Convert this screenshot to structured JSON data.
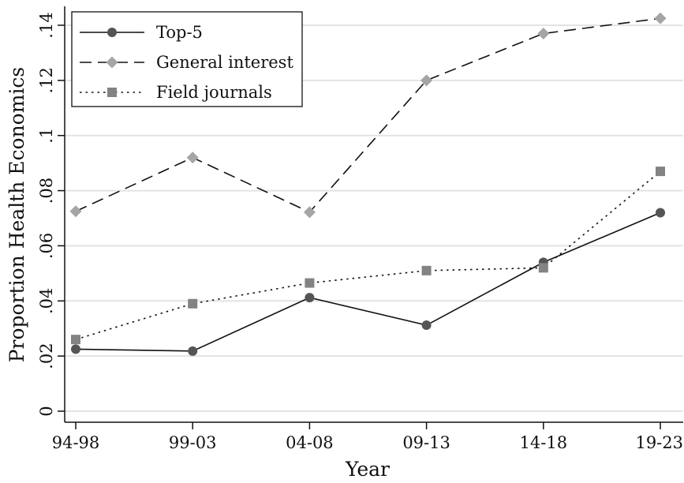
{
  "chart_data": {
    "type": "line",
    "title": "",
    "xlabel": "Year",
    "ylabel": "Proportion Health Economics",
    "categories": [
      "94-98",
      "99-03",
      "04-08",
      "09-13",
      "14-18",
      "19-23"
    ],
    "ylim": [
      0,
      0.145
    ],
    "yticks": [
      0,
      0.02,
      0.04,
      0.06,
      0.08,
      0.1,
      0.12,
      0.14
    ],
    "ytick_labels": [
      "0",
      ".02",
      ".04",
      ".06",
      ".08",
      ".1",
      ".12",
      ".14"
    ],
    "grid": true,
    "legend_position": "top-left",
    "series": [
      {
        "name": "Top-5",
        "values": [
          0.0225,
          0.0218,
          0.0412,
          0.0312,
          0.054,
          0.072
        ],
        "color": "#111111",
        "marker": "circle",
        "marker_color": "#555555",
        "dash": "solid"
      },
      {
        "name": "General interest",
        "values": [
          0.0725,
          0.092,
          0.0722,
          0.12,
          0.137,
          0.1425
        ],
        "color": "#111111",
        "marker": "diamond",
        "marker_color": "#a5a5a5",
        "dash": "dashed"
      },
      {
        "name": "Field journals",
        "values": [
          0.026,
          0.039,
          0.0465,
          0.051,
          0.052,
          0.087
        ],
        "color": "#111111",
        "marker": "square",
        "marker_color": "#838383",
        "dash": "dotted"
      }
    ]
  }
}
